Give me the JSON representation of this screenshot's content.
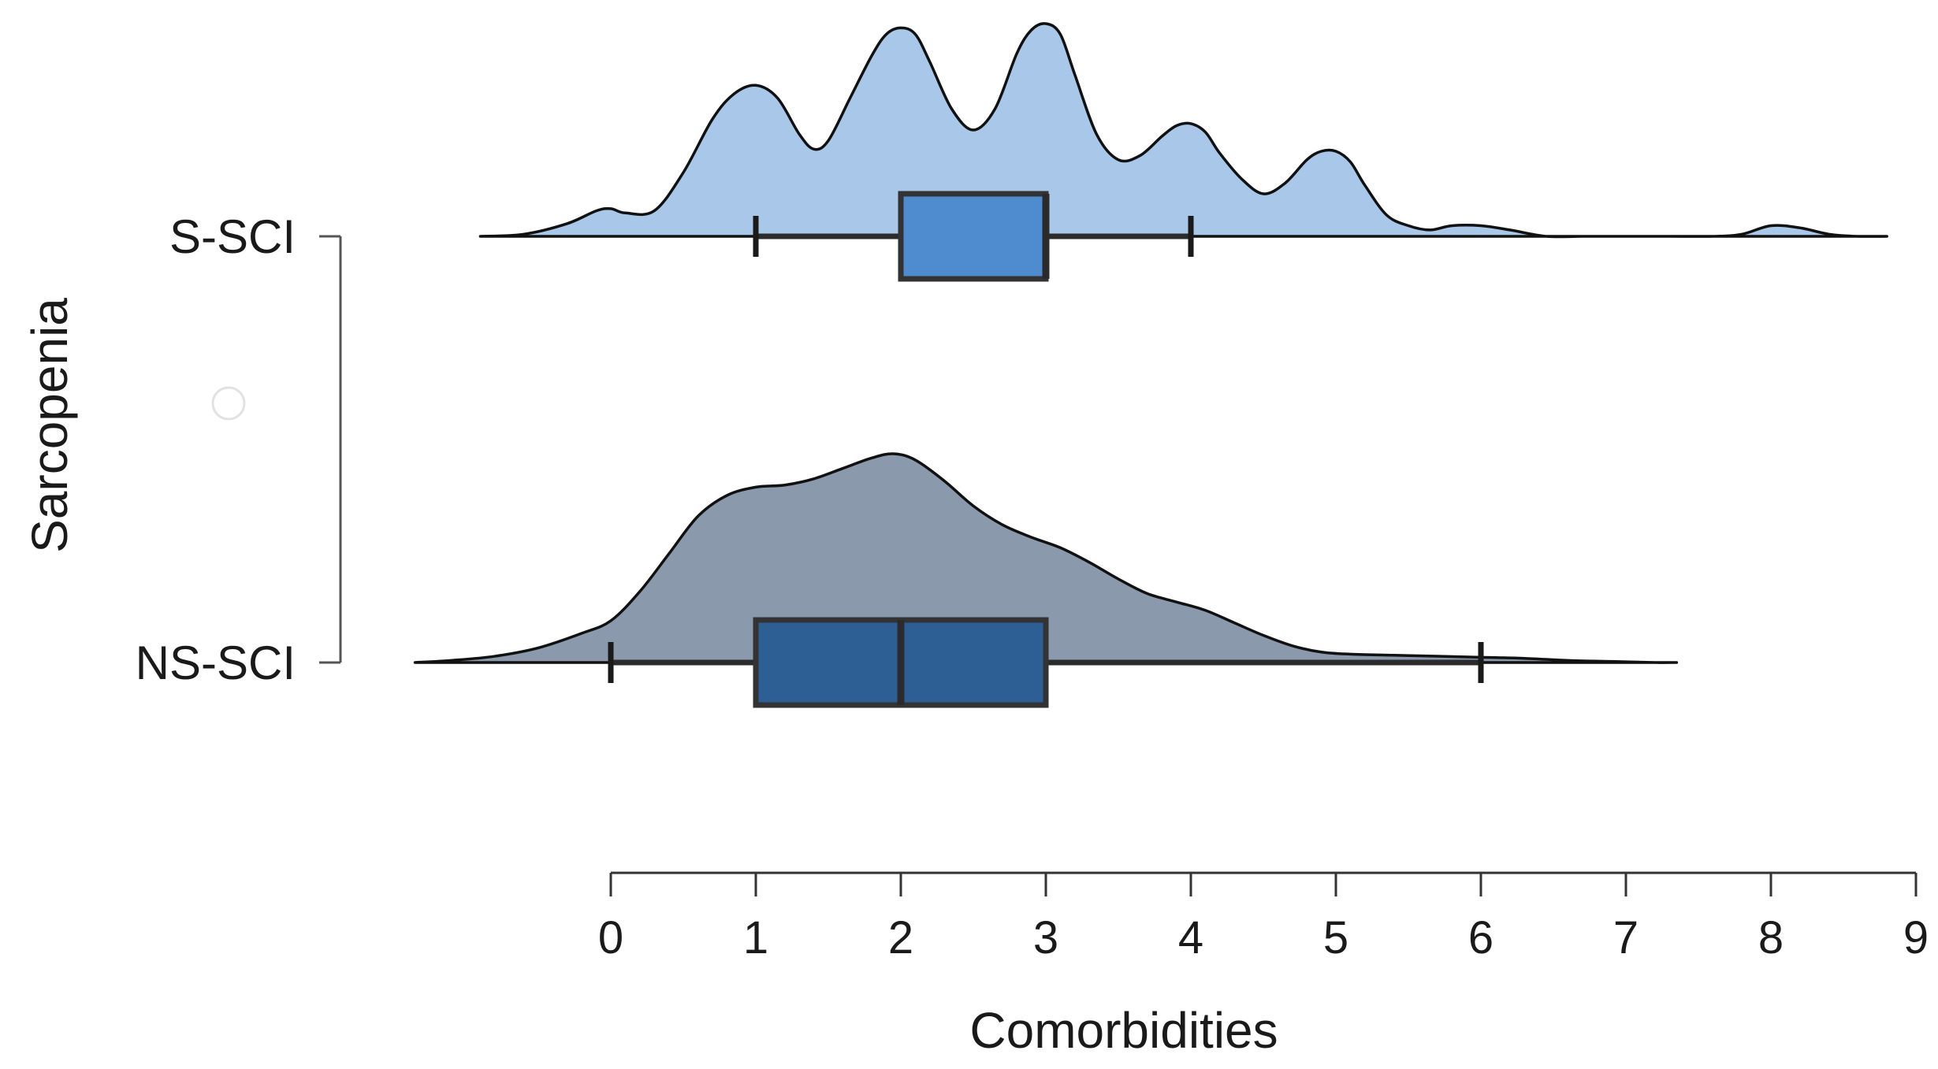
{
  "chart_data": {
    "type": "raincloud",
    "title": "",
    "xlabel": "Comorbidities",
    "ylabel": "Sarcopenia",
    "xlim": [
      0,
      9
    ],
    "xticks": [
      "0",
      "1",
      "2",
      "3",
      "4",
      "5",
      "6",
      "7",
      "8",
      "9"
    ],
    "grid": false,
    "groups": [
      {
        "label": "S-SCI",
        "fill_color": "#a9c7e8",
        "box_color": "#4f8ccf",
        "box": {
          "whisker_low": 1,
          "q1": 2,
          "median": 3,
          "q3": 3,
          "whisker_high": 4
        },
        "density": {
          "x": [
            -0.9,
            -0.6,
            -0.3,
            -0.1,
            0.0,
            0.1,
            0.3,
            0.5,
            0.7,
            0.85,
            1.0,
            1.15,
            1.3,
            1.4,
            1.5,
            1.65,
            1.8,
            1.9,
            2.0,
            2.1,
            2.2,
            2.35,
            2.5,
            2.65,
            2.8,
            2.9,
            3.0,
            3.1,
            3.2,
            3.35,
            3.5,
            3.65,
            3.8,
            3.9,
            4.0,
            4.1,
            4.2,
            4.35,
            4.5,
            4.65,
            4.8,
            4.9,
            5.0,
            5.1,
            5.2,
            5.35,
            5.5,
            5.65,
            5.8,
            6.0,
            6.2,
            6.45,
            6.7,
            7.0,
            7.3,
            7.6,
            7.8,
            8.0,
            8.2,
            8.4,
            8.6,
            8.8
          ],
          "y": [
            0.0,
            0.01,
            0.06,
            0.12,
            0.13,
            0.11,
            0.12,
            0.3,
            0.55,
            0.67,
            0.71,
            0.65,
            0.48,
            0.41,
            0.45,
            0.65,
            0.85,
            0.95,
            0.98,
            0.95,
            0.82,
            0.6,
            0.5,
            0.6,
            0.86,
            0.97,
            1.0,
            0.95,
            0.76,
            0.48,
            0.36,
            0.38,
            0.47,
            0.52,
            0.53,
            0.49,
            0.39,
            0.27,
            0.2,
            0.25,
            0.36,
            0.4,
            0.4,
            0.35,
            0.24,
            0.1,
            0.05,
            0.03,
            0.05,
            0.05,
            0.03,
            0.0,
            0.0,
            0.0,
            0.0,
            0.0,
            0.01,
            0.05,
            0.04,
            0.01,
            0.0,
            0.0
          ]
        }
      },
      {
        "label": "NS-SCI",
        "fill_color": "#8a99ab",
        "box_color": "#2d5f94",
        "box": {
          "whisker_low": 0,
          "q1": 1,
          "median": 2,
          "q3": 3,
          "whisker_high": 6
        },
        "density": {
          "x": [
            -1.35,
            -1.1,
            -0.8,
            -0.5,
            -0.2,
            0.0,
            0.2,
            0.4,
            0.6,
            0.8,
            1.0,
            1.2,
            1.4,
            1.6,
            1.8,
            1.95,
            2.1,
            2.3,
            2.5,
            2.7,
            2.9,
            3.1,
            3.3,
            3.5,
            3.7,
            3.9,
            4.1,
            4.3,
            4.5,
            4.7,
            4.9,
            5.1,
            5.4,
            5.7,
            6.0,
            6.3,
            6.6,
            6.9,
            7.2,
            7.35
          ],
          "y": [
            0.0,
            0.01,
            0.03,
            0.07,
            0.14,
            0.2,
            0.34,
            0.52,
            0.7,
            0.8,
            0.84,
            0.85,
            0.88,
            0.93,
            0.98,
            1.0,
            0.97,
            0.87,
            0.75,
            0.66,
            0.6,
            0.55,
            0.48,
            0.4,
            0.33,
            0.29,
            0.25,
            0.19,
            0.13,
            0.08,
            0.05,
            0.04,
            0.035,
            0.03,
            0.025,
            0.02,
            0.01,
            0.005,
            0.0,
            0.0
          ]
        }
      }
    ]
  }
}
